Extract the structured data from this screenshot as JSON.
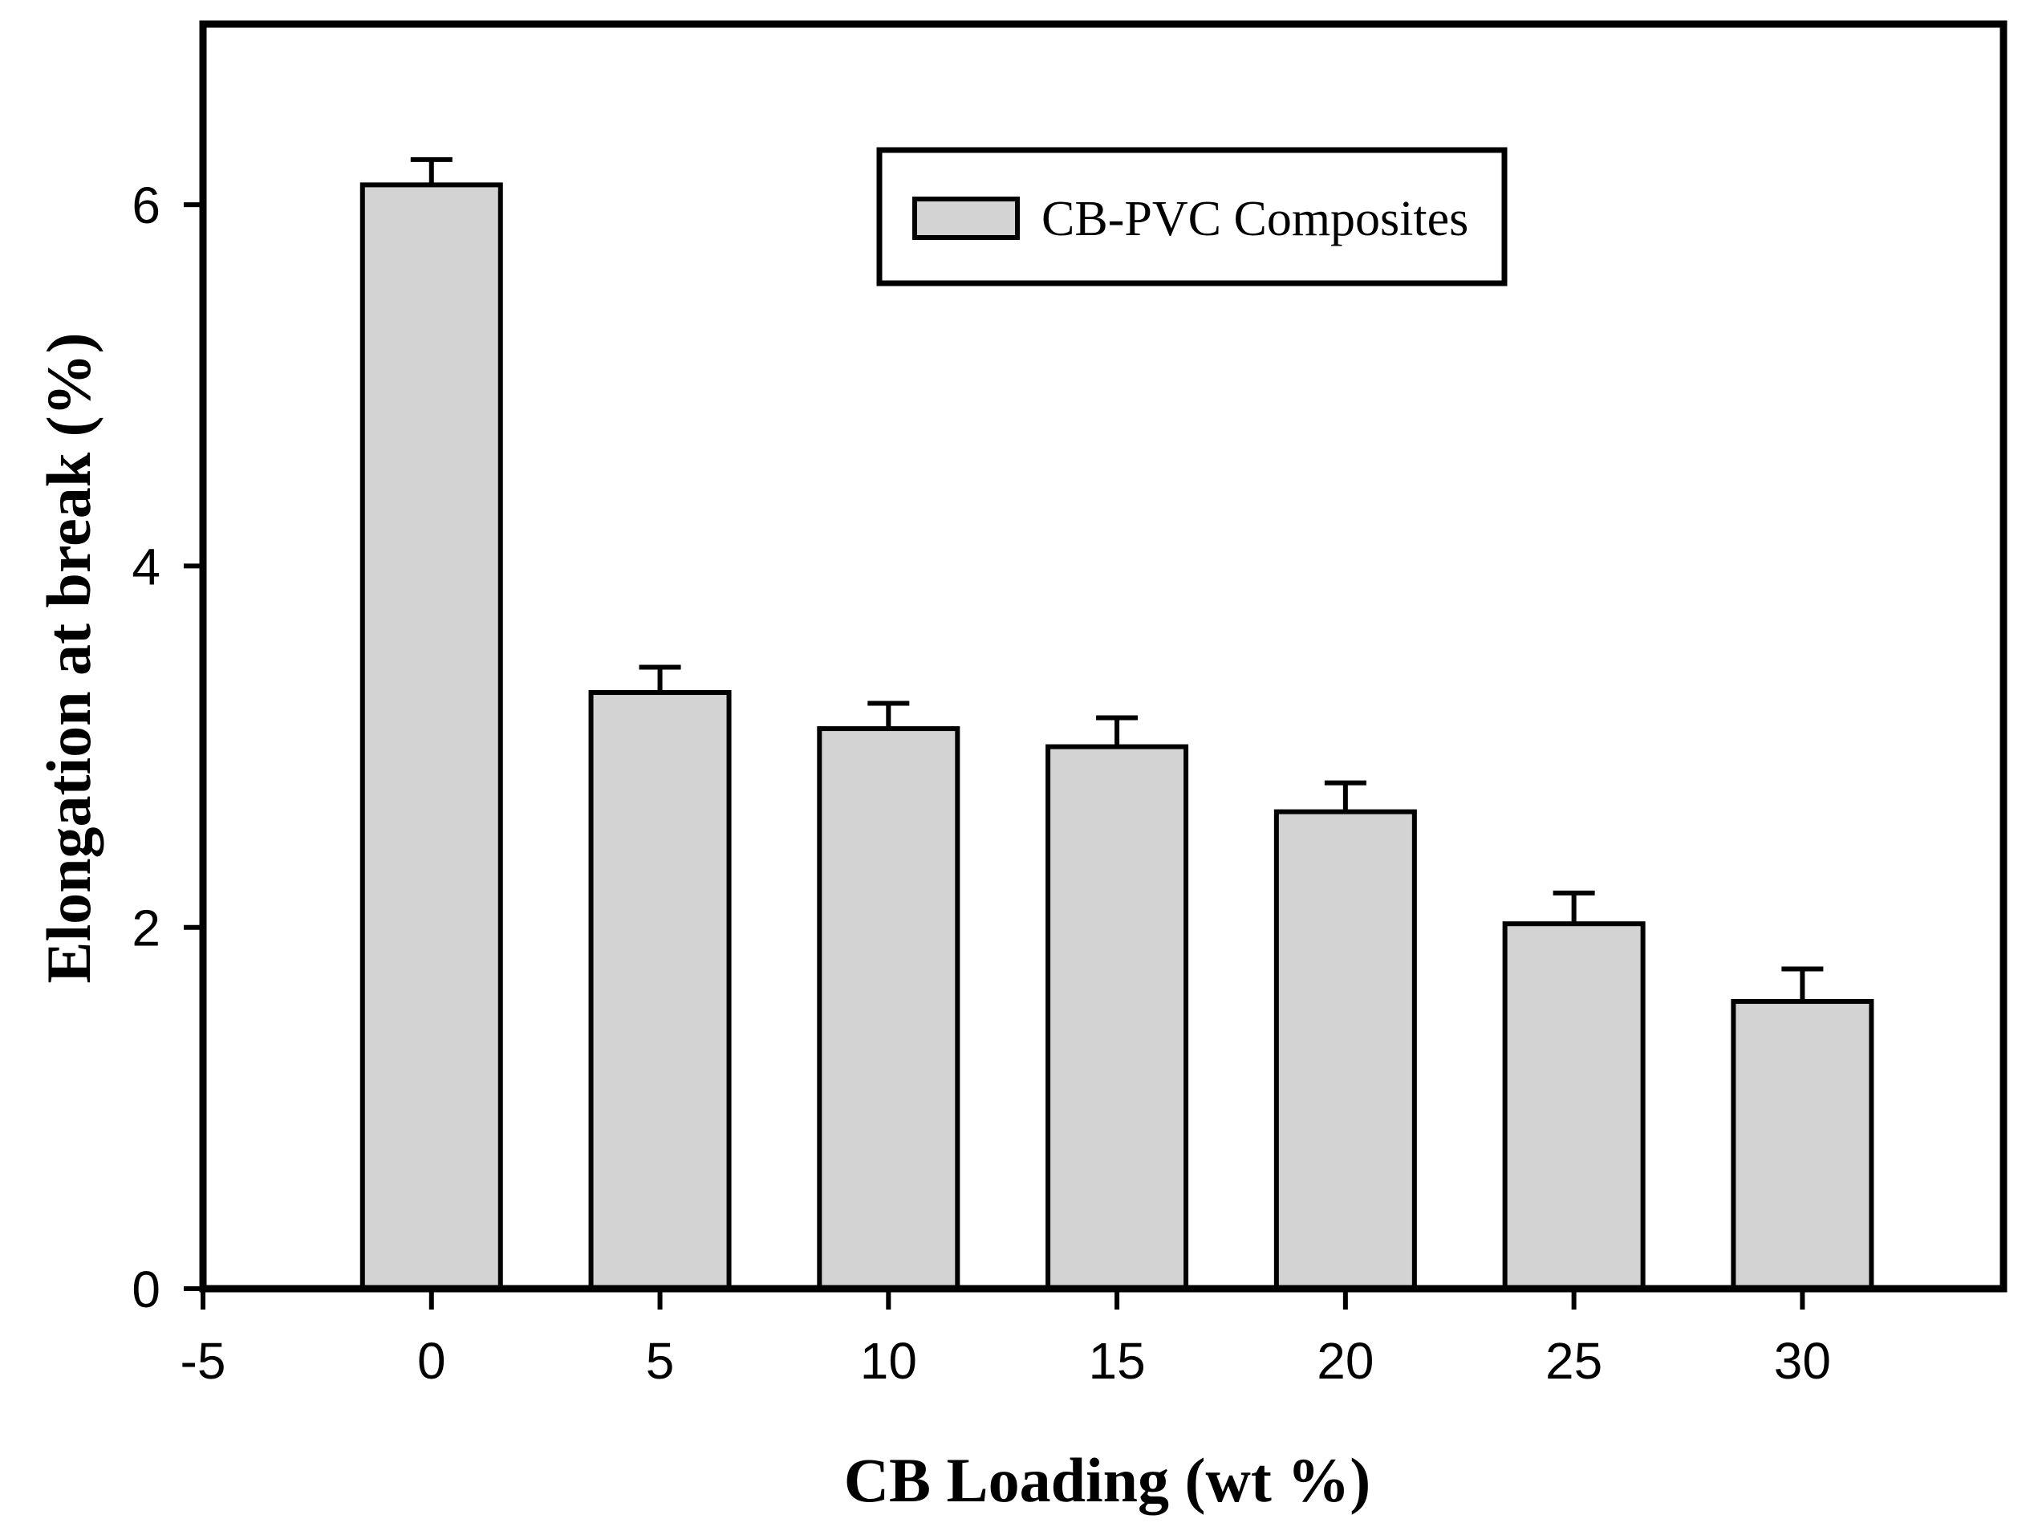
{
  "figure": {
    "background": "#ffffff",
    "ink_color": "#000000"
  },
  "chart_data": {
    "type": "bar",
    "title": "",
    "xlabel": "CB Loading (wt %)",
    "ylabel": "Elongation at break (%)",
    "legend": {
      "label": "CB-PVC Composites",
      "position": "upper-center",
      "swatch_color": "#d3d3d3"
    },
    "categories": [
      0,
      5,
      10,
      15,
      20,
      25,
      30
    ],
    "values": [
      6.11,
      3.3,
      3.1,
      3.0,
      2.64,
      2.02,
      1.59
    ],
    "errors_plus": [
      0.14,
      0.14,
      0.14,
      0.16,
      0.16,
      0.17,
      0.18
    ],
    "bar_width_x_units": 3,
    "xlim": [
      -5,
      34.4
    ],
    "ylim": [
      0,
      7
    ],
    "x_ticks": [
      -5,
      0,
      5,
      10,
      15,
      20,
      25,
      30
    ],
    "y_ticks": [
      0,
      2,
      4,
      6
    ],
    "grid": false,
    "bar_fill": "#d3d3d3",
    "bar_stroke": "#000000",
    "background": "#ffffff"
  }
}
